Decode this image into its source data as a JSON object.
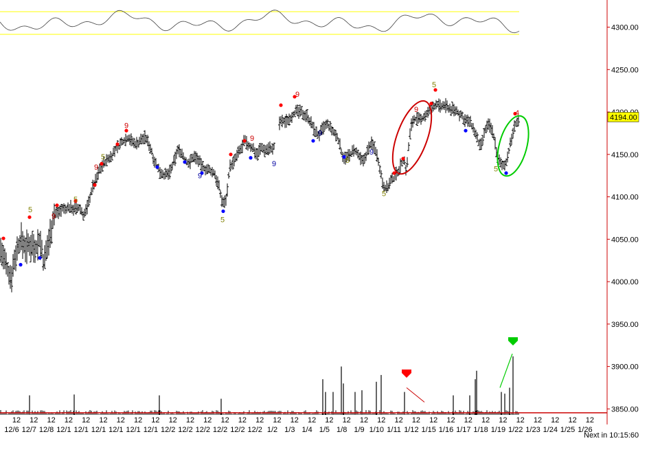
{
  "chart_data": {
    "type": "ohlc",
    "y_axis": {
      "side": "right",
      "range": [
        3843,
        4332
      ],
      "ticks": [
        4300,
        4250,
        4200,
        4150,
        4100,
        4050,
        4000,
        3950,
        3900,
        3850
      ],
      "tick_labels": [
        "4300.00",
        "4250.00",
        "4200.00",
        "4150.00",
        "4100.00",
        "4050.00",
        "4000.00",
        "3950.00",
        "3900.00",
        "3850.00"
      ]
    },
    "last_price": {
      "value": 4194.0,
      "label": "4194.00",
      "color": "#ffff00"
    },
    "x_axis": {
      "hour_label": "12",
      "date_labels": [
        "12/6",
        "12/7",
        "12/8",
        "12/1",
        "12/1",
        "12/1",
        "12/1",
        "12/1",
        "12/1",
        "12/2",
        "12/2",
        "12/2",
        "12/2",
        "12/2",
        "12/2",
        "1/2",
        "1/3",
        "1/4",
        "1/5",
        "1/8",
        "1/9",
        "1/10",
        "1/11",
        "1/12",
        "1/15",
        "1/16",
        "1/17",
        "1/18",
        "1/19",
        "1/22",
        "1/23",
        "1/24",
        "1/25",
        "1/26"
      ],
      "next_label": "Next in 10:15:60"
    },
    "price_keypoints": [
      [
        0,
        4040
      ],
      [
        10,
        4015
      ],
      [
        16,
        4005
      ],
      [
        22,
        4030
      ],
      [
        30,
        4050
      ],
      [
        38,
        4040
      ],
      [
        46,
        4045
      ],
      [
        52,
        4040
      ],
      [
        58,
        4050
      ],
      [
        64,
        4020
      ],
      [
        70,
        4045
      ],
      [
        74,
        4060
      ],
      [
        78,
        4078
      ],
      [
        84,
        4082
      ],
      [
        90,
        4086
      ],
      [
        96,
        4085
      ],
      [
        102,
        4088
      ],
      [
        110,
        4085
      ],
      [
        116,
        4087
      ],
      [
        122,
        4078
      ],
      [
        128,
        4090
      ],
      [
        134,
        4110
      ],
      [
        140,
        4120
      ],
      [
        146,
        4135
      ],
      [
        152,
        4140
      ],
      [
        158,
        4145
      ],
      [
        164,
        4150
      ],
      [
        170,
        4158
      ],
      [
        176,
        4163
      ],
      [
        182,
        4168
      ],
      [
        188,
        4170
      ],
      [
        194,
        4163
      ],
      [
        200,
        4163
      ],
      [
        206,
        4168
      ],
      [
        212,
        4170
      ],
      [
        218,
        4160
      ],
      [
        224,
        4145
      ],
      [
        230,
        4133
      ],
      [
        236,
        4128
      ],
      [
        242,
        4125
      ],
      [
        248,
        4130
      ],
      [
        254,
        4142
      ],
      [
        258,
        4155
      ],
      [
        264,
        4153
      ],
      [
        270,
        4142
      ],
      [
        276,
        4140
      ],
      [
        282,
        4148
      ],
      [
        288,
        4145
      ],
      [
        294,
        4135
      ],
      [
        300,
        4133
      ],
      [
        306,
        4130
      ],
      [
        312,
        4128
      ],
      [
        318,
        4115
      ],
      [
        322,
        4098
      ],
      [
        326,
        4092
      ],
      [
        330,
        4100
      ],
      [
        334,
        4135
      ],
      [
        340,
        4140
      ],
      [
        346,
        4150
      ],
      [
        352,
        4158
      ],
      [
        356,
        4166
      ],
      [
        362,
        4160
      ],
      [
        368,
        4158
      ],
      [
        374,
        4150
      ],
      [
        380,
        4158
      ],
      [
        386,
        4155
      ],
      [
        392,
        4158
      ],
      [
        398,
        4155
      ],
      [
        408,
        4190
      ],
      [
        412,
        4188
      ],
      [
        418,
        4190
      ],
      [
        424,
        4195
      ],
      [
        430,
        4200
      ],
      [
        436,
        4200
      ],
      [
        442,
        4198
      ],
      [
        448,
        4195
      ],
      [
        454,
        4185
      ],
      [
        458,
        4178
      ],
      [
        464,
        4172
      ],
      [
        470,
        4180
      ],
      [
        476,
        4185
      ],
      [
        480,
        4182
      ],
      [
        486,
        4175
      ],
      [
        492,
        4170
      ],
      [
        498,
        4150
      ],
      [
        504,
        4145
      ],
      [
        510,
        4150
      ],
      [
        516,
        4155
      ],
      [
        522,
        4148
      ],
      [
        528,
        4140
      ],
      [
        534,
        4152
      ],
      [
        540,
        4163
      ],
      [
        546,
        4158
      ],
      [
        552,
        4140
      ],
      [
        556,
        4120
      ],
      [
        560,
        4112
      ],
      [
        564,
        4110
      ],
      [
        568,
        4118
      ],
      [
        572,
        4120
      ],
      [
        578,
        4128
      ],
      [
        584,
        4138
      ],
      [
        588,
        4145
      ],
      [
        592,
        4130
      ],
      [
        596,
        4168
      ],
      [
        600,
        4190
      ],
      [
        606,
        4192
      ],
      [
        612,
        4190
      ],
      [
        618,
        4195
      ],
      [
        624,
        4200
      ],
      [
        630,
        4205
      ],
      [
        636,
        4210
      ],
      [
        642,
        4205
      ],
      [
        648,
        4208
      ],
      [
        654,
        4204
      ],
      [
        660,
        4203
      ],
      [
        666,
        4200
      ],
      [
        672,
        4195
      ],
      [
        678,
        4190
      ],
      [
        684,
        4188
      ],
      [
        688,
        4182
      ],
      [
        692,
        4175
      ],
      [
        696,
        4165
      ],
      [
        700,
        4158
      ],
      [
        704,
        4170
      ],
      [
        708,
        4182
      ],
      [
        712,
        4185
      ],
      [
        716,
        4180
      ],
      [
        720,
        4168
      ],
      [
        724,
        4150
      ],
      [
        728,
        4140
      ],
      [
        732,
        4135
      ],
      [
        736,
        4140
      ],
      [
        740,
        4150
      ],
      [
        744,
        4165
      ],
      [
        748,
        4180
      ],
      [
        752,
        4188
      ],
      [
        756,
        4190
      ]
    ],
    "price_end_x": 756,
    "volume": {
      "baseline": 3843,
      "spikes": [
        [
          43,
          3866
        ],
        [
          108,
          3867
        ],
        [
          232,
          3866
        ],
        [
          322,
          3862
        ],
        [
          470,
          3885
        ],
        [
          474,
          3870
        ],
        [
          485,
          3870
        ],
        [
          497,
          3900
        ],
        [
          500,
          3880
        ],
        [
          517,
          3870
        ],
        [
          527,
          3872
        ],
        [
          548,
          3882
        ],
        [
          555,
          3890
        ],
        [
          589,
          3870
        ],
        [
          660,
          3866
        ],
        [
          684,
          3866
        ],
        [
          692,
          3885
        ],
        [
          694,
          3895
        ],
        [
          730,
          3870
        ],
        [
          735,
          3868
        ],
        [
          742,
          3875
        ],
        [
          747,
          3912
        ]
      ]
    },
    "setup_counts": [
      {
        "x": 44,
        "y": 4082,
        "text": "5",
        "color": "#808000"
      },
      {
        "x": 78,
        "y": 4074,
        "text": "9",
        "color": "#cc0000"
      },
      {
        "x": 110,
        "y": 4094,
        "text": "5",
        "color": "#808000"
      },
      {
        "x": 140,
        "y": 4132,
        "text": "9",
        "color": "#cc0000"
      },
      {
        "x": 150,
        "y": 4144,
        "text": "5",
        "color": "#808000"
      },
      {
        "x": 184,
        "y": 4181,
        "text": "9",
        "color": "#cc0000"
      },
      {
        "x": 291,
        "y": 4122,
        "text": "9",
        "color": "#0000a0"
      },
      {
        "x": 324,
        "y": 4070,
        "text": "5",
        "color": "#808000"
      },
      {
        "x": 367,
        "y": 4166,
        "text": "9",
        "color": "#cc0000"
      },
      {
        "x": 399,
        "y": 4136,
        "text": "9",
        "color": "#0000a0"
      },
      {
        "x": 433,
        "y": 4218,
        "text": "9",
        "color": "#cc0000"
      },
      {
        "x": 466,
        "y": 4172,
        "text": "9",
        "color": "#0000a0"
      },
      {
        "x": 506,
        "y": 4140,
        "text": "5",
        "color": "#808000"
      },
      {
        "x": 541,
        "y": 4150,
        "text": "9",
        "color": "#0000a0"
      },
      {
        "x": 559,
        "y": 4101,
        "text": "5",
        "color": "#808000"
      },
      {
        "x": 606,
        "y": 4200,
        "text": "9",
        "color": "#cc0000"
      },
      {
        "x": 632,
        "y": 4229,
        "text": "5",
        "color": "#808000"
      },
      {
        "x": 722,
        "y": 4130,
        "text": "5",
        "color": "#808000"
      },
      {
        "x": 753,
        "y": 4196,
        "text": "4",
        "color": "#cc0000"
      }
    ],
    "highs_red": [
      [
        5,
        4051
      ],
      [
        43,
        4076
      ],
      [
        83,
        4090
      ],
      [
        110,
        4095
      ],
      [
        138,
        4114
      ],
      [
        148,
        4139
      ],
      [
        171,
        4162
      ],
      [
        184,
        4178
      ],
      [
        336,
        4150
      ],
      [
        356,
        4166
      ],
      [
        409,
        4208
      ],
      [
        429,
        4218
      ],
      [
        574,
        4128
      ],
      [
        587,
        4145
      ],
      [
        628,
        4210
      ],
      [
        634,
        4226
      ],
      [
        750,
        4198
      ]
    ],
    "lows_blue": [
      [
        30,
        4020
      ],
      [
        58,
        4028
      ],
      [
        229,
        4135
      ],
      [
        269,
        4141
      ],
      [
        294,
        4128
      ],
      [
        325,
        4083
      ],
      [
        365,
        4146
      ],
      [
        456,
        4166
      ],
      [
        501,
        4147
      ],
      [
        678,
        4178
      ],
      [
        737,
        4128
      ]
    ],
    "annotations": {
      "red_ellipse": {
        "cx": 600,
        "cy": 4170,
        "rx": 22,
        "ry": 56,
        "rotate": 20,
        "color": "#cc0000"
      },
      "green_ellipse": {
        "cx": 747,
        "cy": 4160,
        "rx": 20,
        "ry": 45,
        "rotate": 15,
        "color": "#00cc00"
      },
      "red_arrow": {
        "x": 592,
        "y": 3890,
        "color": "#ff0000"
      },
      "green_arrow": {
        "x": 747,
        "y": 3928,
        "color": "#00cc00"
      },
      "red_line": [
        [
          592,
          3875
        ],
        [
          618,
          3858
        ]
      ],
      "green_line": [
        [
          728,
          3875
        ],
        [
          746,
          3915
        ]
      ]
    },
    "colors": {
      "price_bars": "#000000",
      "axis": "#cc0000",
      "band": "#ffff00",
      "oscillator": "#404040",
      "volume": "#000000"
    }
  }
}
